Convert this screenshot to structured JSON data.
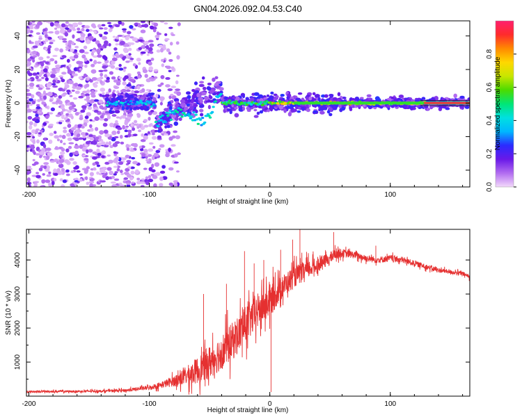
{
  "title": "GN04.2026.092.04.53.C40",
  "chart_data": [
    {
      "type": "heatmap",
      "name": "spectrogram",
      "xlabel": "Height of straight line (km)",
      "ylabel": "Frequency (Hz)",
      "xlim": [
        -202,
        166
      ],
      "ylim": [
        -50,
        49
      ],
      "xticks": [
        -200,
        -100,
        0,
        100
      ],
      "yticks": [
        -40,
        -20,
        0,
        20,
        40
      ],
      "colorbar": {
        "label": "Normalized spectral amplitude",
        "range": [
          0.0,
          1.0
        ],
        "ticks": [
          "0.0",
          "0.2",
          "0.4",
          "0.6",
          "0.8"
        ],
        "tick_values": [
          0.0,
          0.2,
          0.4,
          0.6,
          0.8
        ],
        "colors": [
          "#f3d9fb",
          "#b26cf0",
          "#6a19e8",
          "#2b2bff",
          "#00b7ff",
          "#00e0e0",
          "#00e676",
          "#4cdb00",
          "#c8e600",
          "#ffd800",
          "#ff8a00",
          "#ff2b2b",
          "#ff1f6e"
        ]
      },
      "features": {
        "noise_scatter_x_range": [
          -202,
          -95
        ],
        "signal_start_x": -135,
        "perturbed_region_x": [
          -95,
          -40
        ],
        "perturbation_extremes_hz": {
          "min": -18,
          "max": 16
        },
        "steady_line_x": [
          -40,
          166
        ],
        "steady_line_freq_hz": 0
      }
    },
    {
      "type": "line",
      "name": "snr",
      "xlabel": "Height of straight line (km)",
      "ylabel": "SNR (10 * v/v)",
      "xlim": [
        -202,
        166
      ],
      "ylim": [
        0,
        4900
      ],
      "xticks": [
        -200,
        -100,
        0,
        100
      ],
      "yticks": [
        1000,
        2000,
        3000,
        4000
      ],
      "color": "#e53030",
      "series": [
        {
          "name": "SNR",
          "x_trend": [
            -202,
            -180,
            -160,
            -140,
            -120,
            -100,
            -90,
            -80,
            -70,
            -60,
            -50,
            -40,
            -30,
            -20,
            -10,
            0,
            10,
            20,
            30,
            40,
            50,
            55,
            60,
            70,
            80,
            90,
            100,
            110,
            120,
            130,
            140,
            150,
            160,
            166
          ],
          "y_trend": [
            130,
            140,
            140,
            150,
            170,
            250,
            330,
            440,
            580,
            760,
            1000,
            1300,
            1650,
            2100,
            2500,
            2800,
            3200,
            3500,
            3700,
            3850,
            4050,
            4200,
            4200,
            4150,
            4050,
            4000,
            4050,
            4000,
            3900,
            3800,
            3700,
            3650,
            3600,
            3500
          ],
          "noise_amplitude": [
            40,
            45,
            45,
            50,
            60,
            90,
            140,
            220,
            380,
            560,
            700,
            750,
            800,
            800,
            750,
            700,
            500,
            450,
            400,
            300,
            250,
            220,
            180,
            150,
            140,
            140,
            140,
            130,
            120,
            110,
            100,
            90,
            90,
            90
          ],
          "spikes": [
            {
              "x": -55,
              "y": 3000
            },
            {
              "x": -36,
              "y": 3300
            },
            {
              "x": -21,
              "y": 4260
            },
            {
              "x": -13,
              "y": 3900
            },
            {
              "x": -5,
              "y": 4000
            },
            {
              "x": 1,
              "y": 120
            },
            {
              "x": 9,
              "y": 4300
            },
            {
              "x": 19,
              "y": 4600
            },
            {
              "x": 25,
              "y": 4900
            },
            {
              "x": 53,
              "y": 4820
            },
            {
              "x": 88,
              "y": 4420
            }
          ]
        }
      ]
    }
  ]
}
